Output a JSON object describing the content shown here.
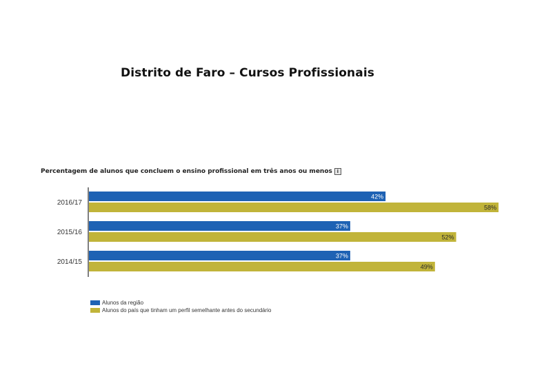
{
  "page": {
    "title": "Distrito  de Faro – Cursos Profissionais"
  },
  "colors": {
    "region": "#1e62b4",
    "country": "#c1b43a",
    "axis": "#555555"
  },
  "chart_data": {
    "type": "bar",
    "orientation": "horizontal",
    "title": "Percentagem de alunos que concluem o ensino profissional em três anos ou menos",
    "categories": [
      "2016/17",
      "2015/16",
      "2014/15"
    ],
    "series": [
      {
        "name": "Alunos da região",
        "values": [
          42,
          37,
          37
        ],
        "labels": [
          "42%",
          "37%",
          "37%"
        ]
      },
      {
        "name": "Alunos do país que tinham um perfil semelhante antes do secundário",
        "values": [
          58,
          52,
          49
        ],
        "labels": [
          "58%",
          "52%",
          "49%"
        ]
      }
    ],
    "xlim": [
      0,
      58
    ],
    "xlabel": "",
    "ylabel": "",
    "grid": false,
    "legend_position": "bottom-left"
  }
}
